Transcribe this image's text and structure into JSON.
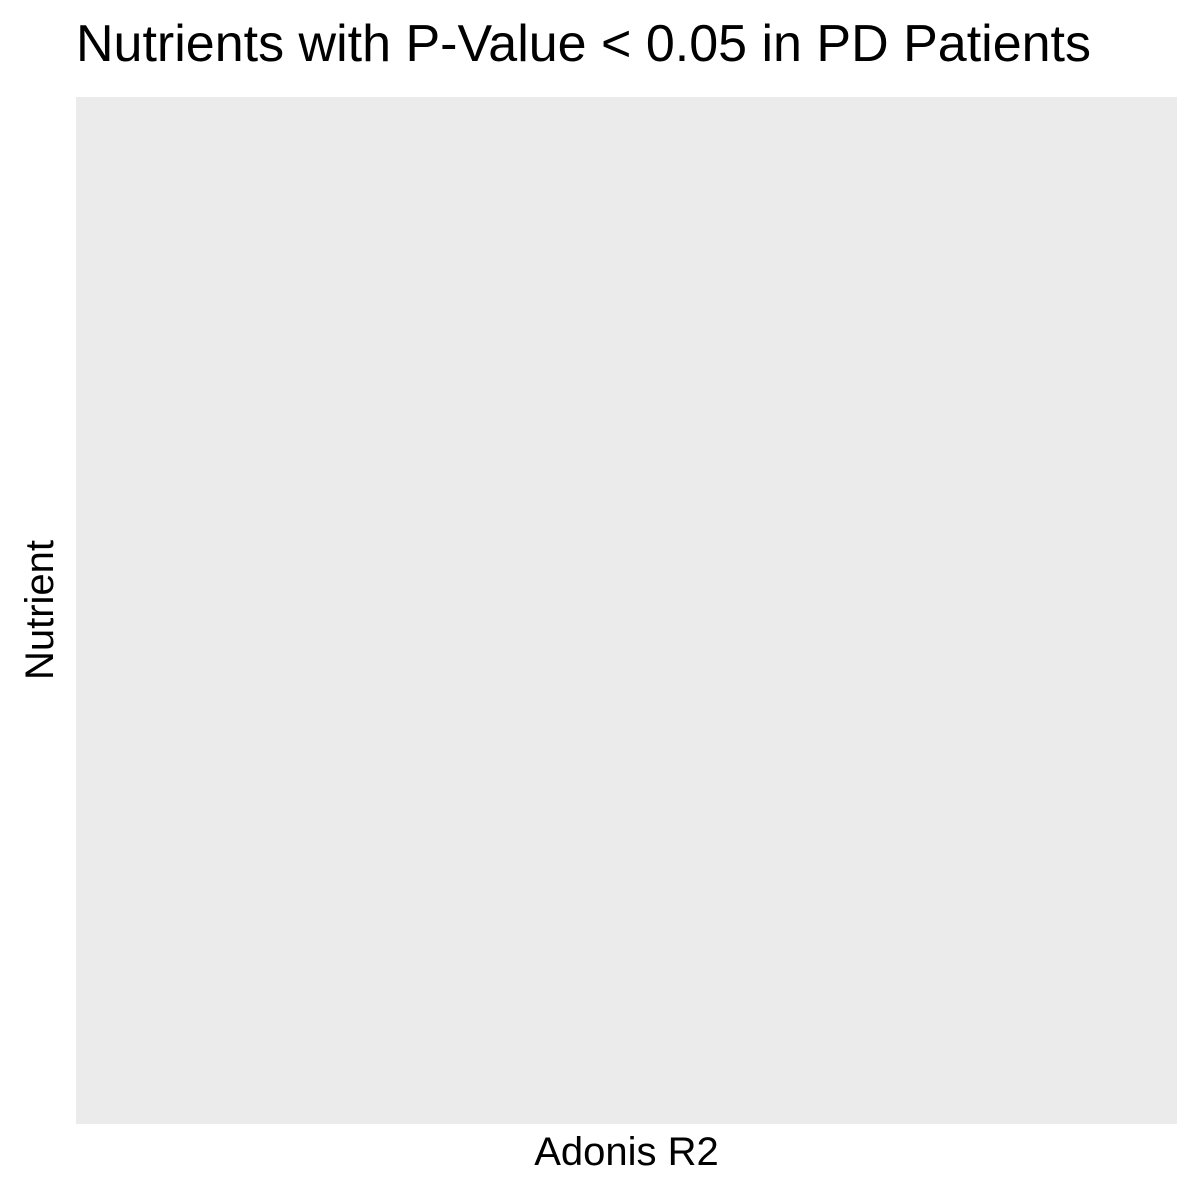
{
  "chart_data": {
    "type": "bar",
    "title": "Nutrients with P-Value < 0.05 in PD Patients",
    "xlabel": "Adonis R2",
    "ylabel": "Nutrient",
    "categories": [],
    "values": [],
    "grid": false,
    "panel_background": "#ebebeb"
  }
}
